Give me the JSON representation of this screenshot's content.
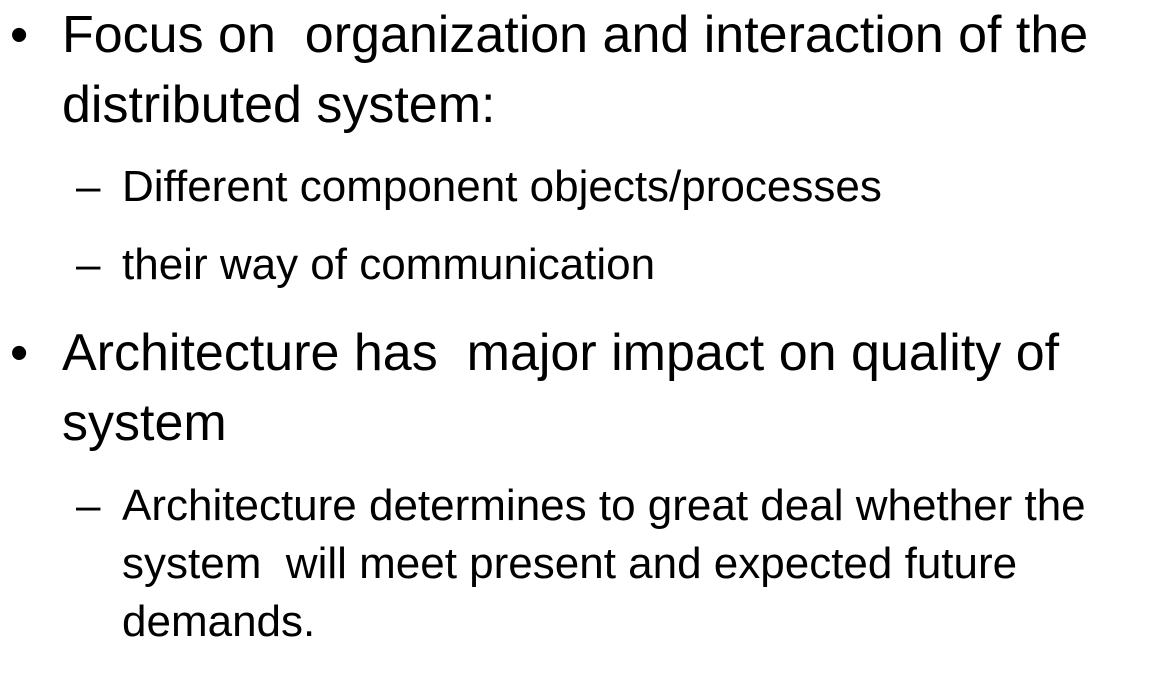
{
  "bullets": [
    {
      "marker": "•",
      "text": "Focus on  organization and interaction of the distributed system:",
      "subitems": [
        {
          "marker": "–",
          "text": "Different component objects/processes"
        },
        {
          "marker": "–",
          "text": "their way of communication"
        }
      ]
    },
    {
      "marker": "•",
      "text": "Architecture has  major impact on quality of  system",
      "subitems": [
        {
          "marker": "–",
          "text": "Architecture determines to great deal whether the system  will meet present and expected future demands."
        }
      ]
    }
  ]
}
